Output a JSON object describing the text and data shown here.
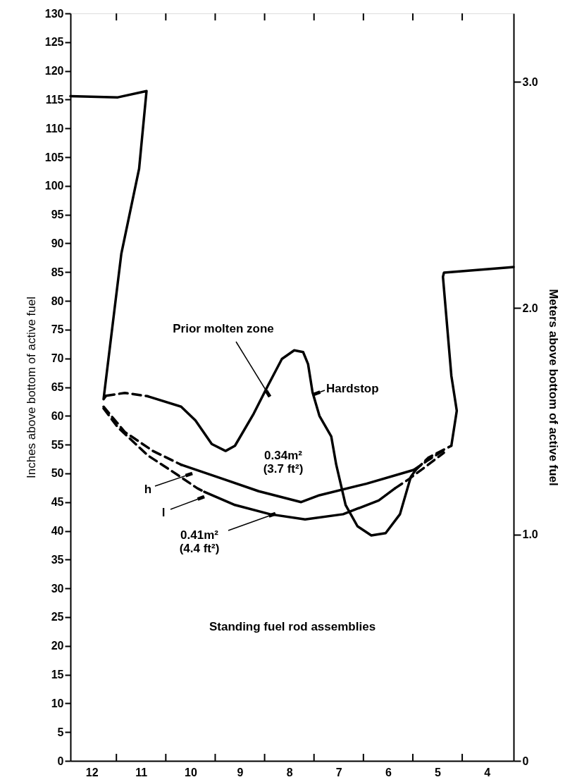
{
  "chart_data": {
    "type": "line",
    "ylabel": "Inches above bottom of active fuel",
    "y2label": "Meters above bottom of active fuel",
    "xlim": [
      12.43,
      3.46
    ],
    "xticks": [
      12,
      11,
      10,
      9,
      8,
      7,
      6,
      5,
      4,
      {
        "value": 11.5,
        "label": null
      },
      {
        "value": 10.5,
        "label": null
      },
      {
        "value": 9.5,
        "label": null
      },
      {
        "value": 8.5,
        "label": null
      },
      {
        "value": 7.5,
        "label": null
      },
      {
        "value": 6.5,
        "label": null
      },
      {
        "value": 5.5,
        "label": null
      },
      {
        "value": 4.5,
        "label": null
      }
    ],
    "ylim": [
      0,
      130
    ],
    "yticks": [
      0,
      5,
      10,
      15,
      20,
      25,
      30,
      35,
      40,
      45,
      50,
      55,
      60,
      65,
      70,
      75,
      80,
      85,
      90,
      95,
      100,
      105,
      110,
      115,
      120,
      125,
      130
    ],
    "y2lim": [
      0,
      3.302
    ],
    "y2ticks": [
      0,
      {
        "value": 1,
        "label": "1.0"
      },
      {
        "value": 2,
        "label": "2.0"
      },
      {
        "value": 3,
        "label": "3.0"
      }
    ],
    "series": [
      {
        "color": "#000000",
        "line_style": "solid",
        "x": [
          12.43,
          11.47,
          10.89,
          11.04,
          11.4,
          11.54,
          11.76,
          11.71
        ],
        "values": [
          115.6,
          115.4,
          116.5,
          103,
          88.2,
          78.4,
          62.9,
          63.5
        ]
      },
      {
        "color": "#000000",
        "line_style": "dashed",
        "x": [
          11.71,
          11.33,
          10.86
        ],
        "values": [
          63.5,
          64.0,
          63.4
        ]
      },
      {
        "color": "#000000",
        "line_style": "solid",
        "x": [
          10.86,
          10.19,
          9.9,
          9.57,
          9.29,
          9.1,
          8.72,
          8.43,
          8.15,
          7.9,
          7.72,
          7.62,
          7.53,
          7.39,
          7.15,
          7.05,
          6.86,
          6.62,
          6.34,
          6.05,
          5.76,
          5.54,
          5.44
        ],
        "values": [
          63.4,
          61.6,
          59.2,
          55.1,
          53.9,
          54.8,
          60.4,
          65.3,
          69.9,
          71.4,
          71.1,
          69.0,
          64.1,
          60.0,
          56.4,
          51.5,
          44.5,
          40.8,
          39.2,
          39.6,
          42.9,
          49.4,
          50.6
        ]
      },
      {
        "color": "#000000",
        "line_style": "dashed",
        "x": [
          5.44,
          5.19,
          4.72
        ],
        "values": [
          50.6,
          52.7,
          54.8
        ]
      },
      {
        "color": "#000000",
        "line_style": "solid",
        "x": [
          4.72,
          4.61,
          4.72,
          4.89,
          4.87,
          3.58,
          3.46
        ],
        "values": [
          54.8,
          60.9,
          67.0,
          84.2,
          84.9,
          85.8,
          85.9
        ]
      },
      {
        "color": "#000000",
        "line_style": "dashed",
        "x": [
          11.76,
          11.33,
          10.76,
          10.19
        ],
        "values": [
          61.6,
          57.2,
          53.9,
          51.5
        ]
      },
      {
        "color": "#000000",
        "line_style": "solid",
        "x": [
          10.19,
          9.33,
          8.62,
          7.76,
          7.39,
          6.44,
          5.48
        ],
        "values": [
          51.5,
          49.0,
          46.9,
          45.0,
          46.2,
          48.2,
          50.6
        ]
      },
      {
        "color": "#000000",
        "line_style": "dashed",
        "x": [
          5.48,
          5.19,
          4.82
        ],
        "values": [
          50.6,
          52.3,
          54.3
        ]
      },
      {
        "color": "#000000",
        "line_style": "dashed",
        "x": [
          11.76,
          11.47,
          10.86,
          10.29,
          9.86,
          9.72
        ],
        "values": [
          61.3,
          58.0,
          53.1,
          49.9,
          47.4,
          46.8
        ]
      },
      {
        "color": "#000000",
        "line_style": "solid",
        "x": [
          9.72,
          9.1,
          8.39,
          7.68,
          6.91,
          6.19,
          5.86
        ],
        "values": [
          46.8,
          44.5,
          42.9,
          42.0,
          42.9,
          45.3,
          47.4
        ]
      },
      {
        "color": "#000000",
        "line_style": "dashed",
        "x": [
          5.86,
          5.58,
          5.19,
          4.87
        ],
        "values": [
          47.4,
          49.0,
          51.5,
          53.6
        ]
      }
    ],
    "annotations": [
      "Prior molten zone",
      "Hardstop",
      "h",
      "l",
      {
        "text": "0.41m²\n(4.4 ft²)",
        "x": 8.28,
        "y": 43.0
      },
      "0.34m²\n(3.7 ft²)",
      "Standing fuel rod assemblies"
    ]
  }
}
